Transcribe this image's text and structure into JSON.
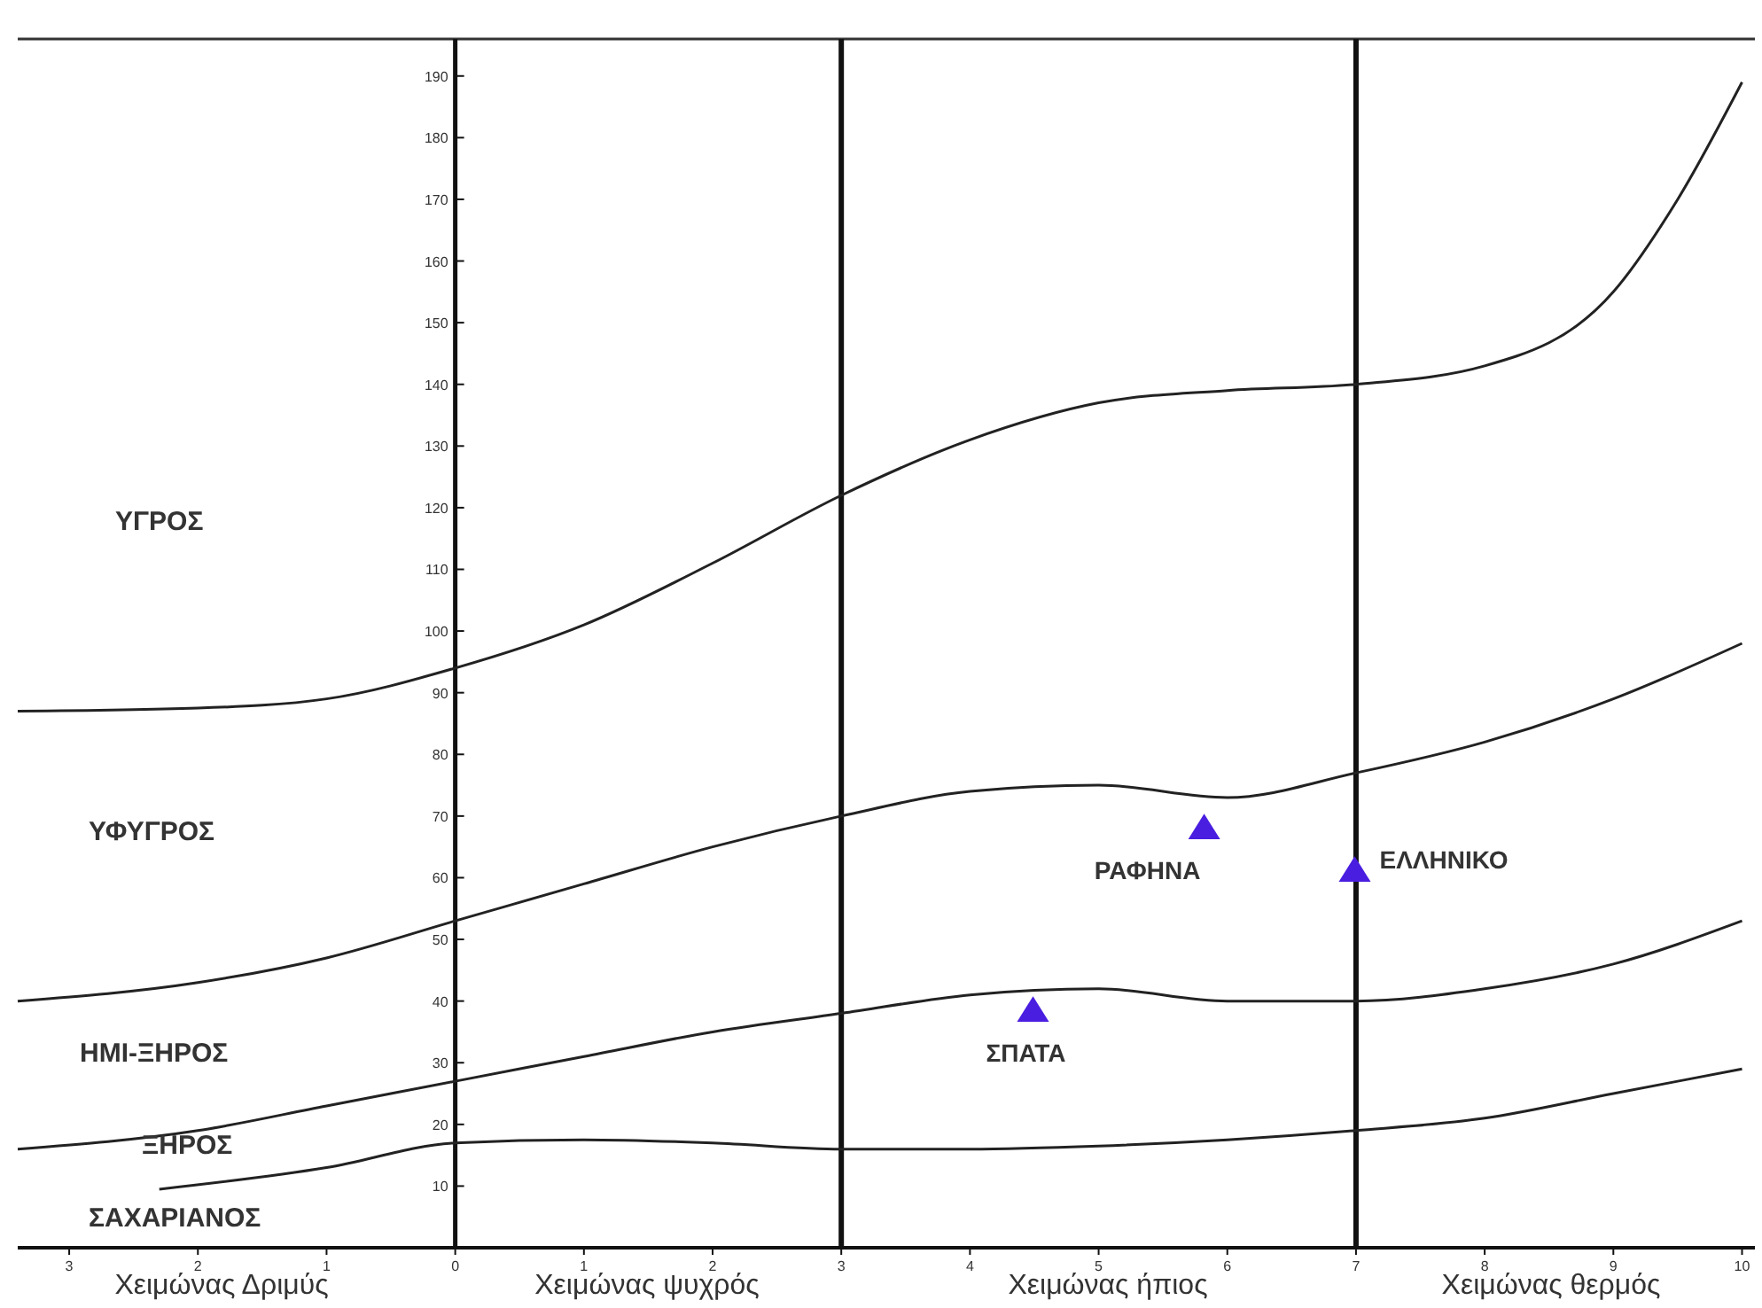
{
  "chart_data": {
    "type": "line",
    "xlim": [
      -3.4,
      10.1
    ],
    "ylim": [
      0,
      196
    ],
    "xticks": [
      {
        "value": -3,
        "label": "3"
      },
      {
        "value": -2,
        "label": "2"
      },
      {
        "value": -1,
        "label": "1"
      },
      0,
      1,
      2,
      3,
      4,
      5,
      6,
      7,
      8,
      9,
      10
    ],
    "yticks": [
      10,
      20,
      30,
      40,
      50,
      60,
      70,
      80,
      90,
      100,
      110,
      120,
      130,
      140,
      150,
      160,
      170,
      180,
      190
    ],
    "legend": false,
    "marker": "none",
    "line_style": "solid",
    "series": [
      {
        "color": "#222222",
        "x": [
          -3.4,
          -2,
          -1,
          0,
          1,
          2,
          3,
          4,
          5,
          6,
          7,
          8,
          9,
          9.5,
          10
        ],
        "values": [
          87,
          87.5,
          89,
          94,
          101,
          111,
          122,
          131,
          137,
          139,
          140,
          143,
          155,
          170,
          189
        ]
      },
      {
        "color": "#222222",
        "x": [
          -3.4,
          -2,
          -1,
          0,
          1,
          2,
          3,
          4,
          5,
          6,
          7,
          8,
          9,
          10
        ],
        "values": [
          40,
          43,
          47,
          53,
          59,
          65,
          70,
          74,
          75,
          73,
          77,
          82,
          89,
          98
        ]
      },
      {
        "color": "#222222",
        "x": [
          -3.4,
          -2,
          -1,
          0,
          1,
          2,
          3,
          4,
          5,
          6,
          7,
          8,
          9,
          10
        ],
        "values": [
          16,
          19,
          23,
          27,
          31,
          35,
          38,
          41,
          42,
          40,
          40,
          42,
          46,
          53
        ]
      },
      {
        "color": "#222222",
        "x": [
          -2.3,
          -1,
          0,
          1,
          2,
          3,
          4,
          5,
          6,
          7,
          8,
          9,
          10
        ],
        "values": [
          9.5,
          13,
          17,
          17.5,
          17,
          16,
          16,
          16.5,
          17.5,
          19,
          21,
          25,
          29
        ]
      },
      {
        "type": "scatter",
        "name": "ΡΑΦΗΝΑ",
        "marker": "triangle",
        "color": "#4a1ee0",
        "x": [
          5.82
        ],
        "values": [
          67.8
        ]
      },
      {
        "type": "scatter",
        "name": "ΕΛΛΗΝΙΚΟ",
        "marker": "triangle",
        "color": "#4a1ee0",
        "x": [
          6.99
        ],
        "values": [
          60.9
        ]
      },
      {
        "type": "scatter",
        "name": "ΣΠΑΤΑ",
        "marker": "triangle",
        "color": "#4a1ee0",
        "x": [
          4.49
        ],
        "values": [
          38.2
        ]
      }
    ],
    "ref_lines": [
      {
        "axis": "x",
        "value": 3,
        "color": "#111111"
      },
      {
        "axis": "x",
        "value": 7,
        "color": "#111111"
      }
    ],
    "annotations": [
      "ΥΓΡΟΣ",
      "ΥΦΥΓΡΟΣ",
      "ΗΜΙ-ΞΗΡΟΣ",
      "ΞΗΡΟΣ",
      "ΣΑΧΑΡΙΑΝΟΣ",
      "Χειμώνας Δριμύς",
      "Χειμώνας ψυχρός",
      "Χειμώνας ήπιος",
      "Χειμώνας θερμός"
    ]
  }
}
